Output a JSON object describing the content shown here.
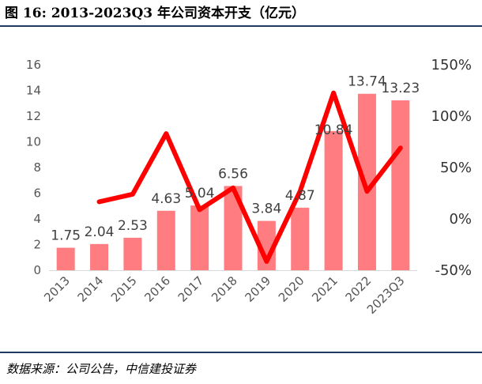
{
  "figure": {
    "title": "图 16: 2013-2023Q3 年公司资本开支（亿元）",
    "source": "数据来源：公司公告，中信建投证券"
  },
  "colors": {
    "bar": "#ff7c80",
    "line": "#ff0000",
    "rule": "#1f3864"
  },
  "chart_data": {
    "type": "bar",
    "categories": [
      "2013",
      "2014",
      "2015",
      "2016",
      "2017",
      "2018",
      "2019",
      "2020",
      "2021",
      "2022",
      "2023Q3"
    ],
    "series": [
      {
        "type": "bar",
        "axis": "left",
        "values": [
          1.75,
          2.04,
          2.53,
          4.63,
          5.04,
          6.56,
          3.84,
          4.87,
          10.84,
          13.74,
          13.23
        ],
        "data_labels": [
          "1.75",
          "2.04",
          "2.53",
          "4.63",
          "5.04",
          "6.56",
          "3.84",
          "4.87",
          "10.84",
          "13.74",
          "13.23"
        ]
      },
      {
        "type": "line",
        "axis": "right",
        "values": [
          null,
          0.166,
          0.24,
          0.83,
          0.089,
          0.302,
          -0.415,
          0.268,
          1.226,
          0.268,
          0.69
        ]
      }
    ],
    "left_axis": {
      "ylim": [
        0,
        16
      ],
      "ticks": [
        "0",
        "2",
        "4",
        "6",
        "8",
        "10",
        "12",
        "14",
        "16"
      ]
    },
    "right_axis": {
      "ylim": [
        -0.5,
        1.5
      ],
      "ticks": [
        "-50%",
        "0%",
        "50%",
        "100%",
        "150%"
      ]
    },
    "grid": false,
    "legend": "none",
    "xlabel": "",
    "ylabel": ""
  }
}
